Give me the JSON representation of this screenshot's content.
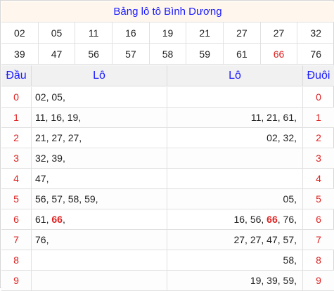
{
  "title": "Bảng lô tô Bình Dương",
  "numbers_row1": [
    "02",
    "05",
    "11",
    "16",
    "19",
    "21",
    "27",
    "27",
    "32"
  ],
  "numbers_row2": [
    "39",
    "47",
    "56",
    "57",
    "58",
    "59",
    "61",
    "66",
    "76"
  ],
  "highlight_number": "66",
  "header": {
    "dau": "Đầu",
    "lo_left": "Lô",
    "lo_right": "Lô",
    "duoi": "Đuôi"
  },
  "rows": [
    {
      "digit": "0",
      "left": [
        "02",
        "05"
      ],
      "right": []
    },
    {
      "digit": "1",
      "left": [
        "11",
        "16",
        "19"
      ],
      "right": [
        "11",
        "21",
        "61"
      ]
    },
    {
      "digit": "2",
      "left": [
        "21",
        "27",
        "27"
      ],
      "right": [
        "02",
        "32"
      ]
    },
    {
      "digit": "3",
      "left": [
        "32",
        "39"
      ],
      "right": []
    },
    {
      "digit": "4",
      "left": [
        "47"
      ],
      "right": []
    },
    {
      "digit": "5",
      "left": [
        "56",
        "57",
        "58",
        "59"
      ],
      "right": [
        "05"
      ]
    },
    {
      "digit": "6",
      "left": [
        "61",
        "66"
      ],
      "right": [
        "16",
        "56",
        "66",
        "76"
      ]
    },
    {
      "digit": "7",
      "left": [
        "76"
      ],
      "right": [
        "27",
        "27",
        "47",
        "57"
      ]
    },
    {
      "digit": "8",
      "left": [],
      "right": [
        "58"
      ]
    },
    {
      "digit": "9",
      "left": [],
      "right": [
        "19",
        "39",
        "59"
      ]
    }
  ],
  "colors": {
    "title_text": "#1a1aff",
    "red": "#e02020",
    "title_bg": "#fff7ee",
    "header_bg": "#f1f1f1"
  }
}
